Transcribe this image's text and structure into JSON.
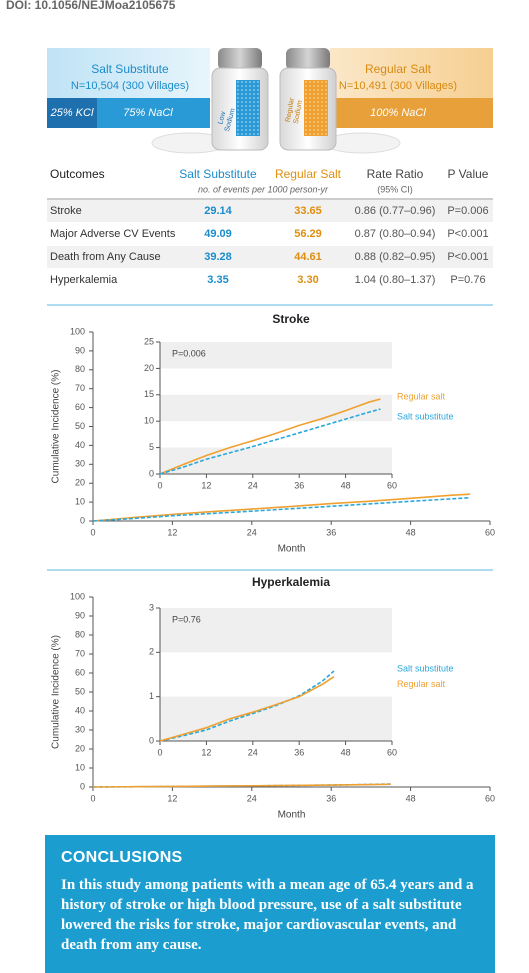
{
  "header": {
    "doi": "DOI: 10.1056/NEJMoa2105675"
  },
  "arms": [
    {
      "name": "Salt Substitute",
      "n": "N=10,504 (300 Villages)",
      "composition": [
        "25% KCl",
        "75% NaCl"
      ],
      "label": [
        "Low",
        "Sodium"
      ]
    },
    {
      "name": "Regular Salt",
      "n": "N=10,491 (300 Villages)",
      "composition": [
        "100% NaCl"
      ],
      "label": [
        "Regular",
        "Sodium"
      ]
    }
  ],
  "table": {
    "header": [
      "Outcomes",
      "Salt Substitute",
      "Regular Salt",
      "Rate Ratio",
      "P Value"
    ],
    "subheader": [
      "no. of events per 1000 person-yr",
      "(95% CI)"
    ],
    "rows": [
      [
        "Stroke",
        "29.14",
        "33.65",
        "0.86 (0.77–0.96)",
        "P=0.006"
      ],
      [
        "Major Adverse CV Events",
        "49.09",
        "56.29",
        "0.87 (0.80–0.94)",
        "P<0.001"
      ],
      [
        "Death from Any Cause",
        "39.28",
        "44.61",
        "0.88 (0.82–0.95)",
        "P<0.001"
      ],
      [
        "Hyperkalemia",
        "3.35",
        "3.30",
        "1.04 (0.80–1.37)",
        "P=0.76"
      ]
    ]
  },
  "chart_data": [
    {
      "type": "line",
      "title": "Stroke",
      "ylabel": "Cumulative Incidence (%)",
      "xlabel": "Month",
      "x": [
        0,
        6,
        12,
        18,
        24,
        30,
        36,
        42,
        48,
        54,
        57
      ],
      "series": [
        {
          "name": "Regular salt",
          "color": "#f0a030",
          "dashed": false,
          "values": [
            0,
            1.8,
            3.5,
            5,
            6.3,
            7.7,
            9.2,
            10.5,
            12,
            13.6,
            14.2
          ]
        },
        {
          "name": "Salt substitute",
          "color": "#2aa7dc",
          "dashed": true,
          "values": [
            0,
            1.3,
            2.8,
            4,
            5.2,
            6.5,
            7.8,
            9.1,
            10.4,
            11.7,
            12.3
          ]
        }
      ],
      "xlim": [
        0,
        60
      ],
      "ylim": [
        0,
        100
      ],
      "xticks": [
        0,
        12,
        24,
        36,
        48,
        60
      ],
      "yticks": [
        0,
        10,
        20,
        30,
        40,
        50,
        60,
        70,
        80,
        90,
        100
      ],
      "inset": {
        "xlim": [
          0,
          60
        ],
        "ylim": [
          0,
          25
        ],
        "xticks": [
          0,
          12,
          24,
          36,
          48,
          60
        ],
        "yticks": [
          0,
          5,
          10,
          15,
          20,
          25
        ],
        "banded": true,
        "annotation": "P=0.006"
      }
    },
    {
      "type": "line",
      "title": "Hyperkalemia",
      "ylabel": "Cumulative Incidence (%)",
      "xlabel": "Month",
      "x": [
        0,
        6,
        12,
        18,
        24,
        30,
        36,
        42,
        45
      ],
      "series": [
        {
          "name": "Salt substitute",
          "color": "#2aa7dc",
          "dashed": true,
          "values": [
            0,
            0.12,
            0.25,
            0.45,
            0.62,
            0.8,
            1.02,
            1.35,
            1.58
          ]
        },
        {
          "name": "Regular salt",
          "color": "#f0a030",
          "dashed": false,
          "values": [
            0,
            0.15,
            0.3,
            0.5,
            0.65,
            0.82,
            1.0,
            1.28,
            1.45
          ]
        }
      ],
      "xlim": [
        0,
        60
      ],
      "ylim": [
        0,
        100
      ],
      "xticks": [
        0,
        12,
        24,
        36,
        48,
        60
      ],
      "yticks": [
        0,
        10,
        20,
        30,
        40,
        50,
        60,
        70,
        80,
        90,
        100
      ],
      "inset": {
        "xlim": [
          0,
          60
        ],
        "ylim": [
          0,
          3
        ],
        "xticks": [
          0,
          12,
          24,
          36,
          48,
          60
        ],
        "yticks": [
          0,
          1,
          2,
          3
        ],
        "banded": true,
        "annotation": "P=0.76"
      }
    }
  ],
  "conclusions": {
    "title": "CONCLUSIONS",
    "text": "In this study among patients with a mean age of 65.4 years and a history of stroke or high blood pressure, use of a salt substitute lowered the risks for stroke, major cardiovascular events, and death from any cause."
  }
}
